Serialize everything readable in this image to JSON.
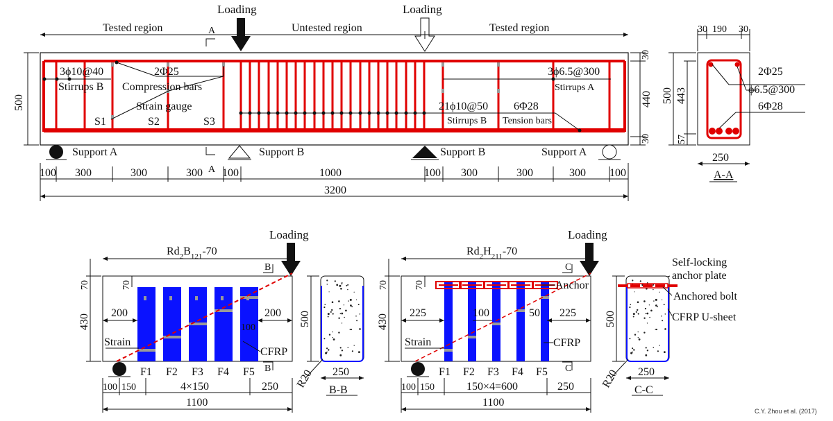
{
  "top": {
    "loading_left": "Loading",
    "loading_right": "Loading",
    "tested_left": "Tested region",
    "untested": "Untested region",
    "tested_right": "Tested region",
    "sec_mark": "A",
    "stirrups_b_spec": "3ϕ10@40",
    "stirrups_b": "Stirrups B",
    "comp_spec": "2Φ25",
    "comp_bars": "Compression bars",
    "strain_gauge": "Strain gauge",
    "s1": "S1",
    "s2": "S2",
    "s3": "S3",
    "stirrups_a_spec": "3ϕ6.5@300",
    "stirrups_a": "Stirrups A",
    "mid_spec": "21ϕ10@50",
    "mid_stirrups": "Stirrups B",
    "tension_spec": "6Φ28",
    "tension_bars": "Tension bars",
    "support_a_left": "Support A",
    "support_b_left": "Support B",
    "support_b_right": "Support B",
    "support_a_right": "Support A",
    "height": "500",
    "h30_top": "30",
    "h440": "440",
    "h30_bot": "30",
    "dims": [
      "100",
      "300",
      "300",
      "300",
      "100",
      "1000",
      "100",
      "300",
      "300",
      "300",
      "100"
    ],
    "total": "3200"
  },
  "section_aa": {
    "w30a": "30",
    "w190": "190",
    "w30b": "30",
    "bar_top": "2Φ25",
    "stirrup": "ϕ6.5@300",
    "bar_bot": "6Φ28",
    "h500": "500",
    "h443": "443",
    "h57": "57",
    "width": "250",
    "label": "A-A"
  },
  "beam_b": {
    "title_pre": "Rd",
    "title_sub1": "2",
    "title_mid": "B",
    "title_sub2": "121",
    "title_post": "-70",
    "loading": "Loading",
    "sec_mark": "B",
    "h70_out": "70",
    "h70_in": "70",
    "h430": "430",
    "d200_left": "200",
    "d200_right": "200",
    "d100": "100",
    "strain": "Strain",
    "cfrp": "CFRP",
    "strips": [
      "F1",
      "F2",
      "F3",
      "F4",
      "F5"
    ],
    "dim_100": "100",
    "dim_150": "150",
    "dim_mid": "4×150",
    "dim_250": "250",
    "total": "1100"
  },
  "section_bb": {
    "h500": "500",
    "r20": "R20",
    "width": "250",
    "label": "B-B"
  },
  "beam_h": {
    "title_pre": "Rd",
    "title_sub1": "2",
    "title_mid": "H",
    "title_sub2": "211",
    "title_post": "-70",
    "loading": "Loading",
    "sec_mark": "C",
    "h70_out": "70",
    "h70_in": "70",
    "h430": "430",
    "d225_left": "225",
    "d225_right": "225",
    "d100": "100",
    "d50": "50",
    "anchor": "Anchor",
    "strain": "Strain",
    "cfrp": "CFRP",
    "strips": [
      "F1",
      "F2",
      "F3",
      "F4",
      "F5"
    ],
    "dim_100": "100",
    "dim_150": "150",
    "dim_mid": "150×4=600",
    "dim_250": "250",
    "total": "1100"
  },
  "section_cc": {
    "self_locking_1": "Self-locking",
    "self_locking_2": "anchor plate",
    "anchored_bolt": "Anchored bolt",
    "cfrp_u": "CFRP U-sheet",
    "h500": "500",
    "r20": "R20",
    "width": "250",
    "label": "C-C"
  },
  "credit": "C.Y. Zhou et al. (2017)",
  "colors": {
    "rebar": "#e00000",
    "cfrp": "#0a12ff",
    "gauge": "#9a9a9a"
  }
}
